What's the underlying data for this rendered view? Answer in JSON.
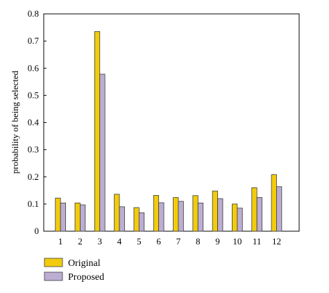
{
  "chart_data": {
    "type": "bar",
    "title": "",
    "xlabel": "",
    "ylabel": "probability of being selected",
    "categories": [
      "1",
      "2",
      "3",
      "4",
      "5",
      "6",
      "7",
      "8",
      "9",
      "10",
      "11",
      "12"
    ],
    "series": [
      {
        "name": "Original",
        "color": "#f2cc0c",
        "values": [
          0.122,
          0.104,
          0.735,
          0.136,
          0.087,
          0.132,
          0.124,
          0.131,
          0.148,
          0.1,
          0.16,
          0.208
        ]
      },
      {
        "name": "Proposed",
        "color": "#bcaed3",
        "values": [
          0.104,
          0.097,
          0.578,
          0.09,
          0.068,
          0.105,
          0.11,
          0.104,
          0.12,
          0.085,
          0.124,
          0.164
        ]
      }
    ],
    "ylim": [
      0,
      0.8
    ],
    "yticks": [
      "0",
      "0.1",
      "0.2",
      "0.3",
      "0.4",
      "0.5",
      "0.6",
      "0.7",
      "0.8"
    ],
    "grid": false,
    "legend_position": "bottom-left"
  }
}
